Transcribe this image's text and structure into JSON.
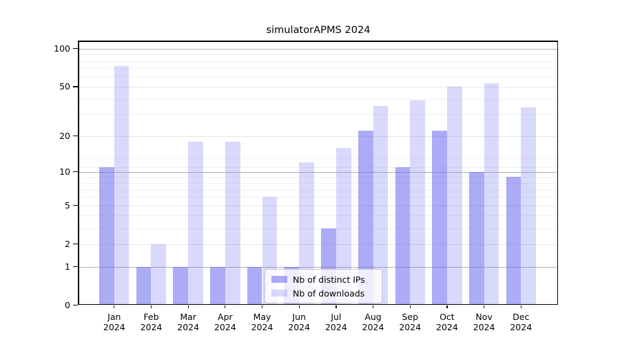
{
  "chart_data": {
    "type": "bar",
    "title": "simulatorAPMS 2024",
    "categories": [
      {
        "month": "Jan",
        "year": "2024"
      },
      {
        "month": "Feb",
        "year": "2024"
      },
      {
        "month": "Mar",
        "year": "2024"
      },
      {
        "month": "Apr",
        "year": "2024"
      },
      {
        "month": "May",
        "year": "2024"
      },
      {
        "month": "Jun",
        "year": "2024"
      },
      {
        "month": "Jul",
        "year": "2024"
      },
      {
        "month": "Aug",
        "year": "2024"
      },
      {
        "month": "Sep",
        "year": "2024"
      },
      {
        "month": "Oct",
        "year": "2024"
      },
      {
        "month": "Nov",
        "year": "2024"
      },
      {
        "month": "Dec",
        "year": "2024"
      }
    ],
    "series": [
      {
        "name": "Nb of distinct IPs",
        "values": [
          11,
          1,
          1,
          1,
          1,
          1,
          3,
          22,
          11,
          22,
          10,
          9
        ]
      },
      {
        "name": "Nb of downloads",
        "values": [
          73,
          2,
          18,
          18,
          6,
          12,
          16,
          35,
          39,
          50,
          53,
          34
        ]
      }
    ],
    "yscale": "log(1+v)",
    "ylim": [
      0,
      116
    ],
    "yticks": [
      0,
      1,
      2,
      5,
      10,
      20,
      50,
      100
    ],
    "minor_gridlines": [
      3,
      4,
      6,
      7,
      8,
      9,
      11,
      13,
      30,
      40,
      60,
      70,
      80,
      90
    ],
    "grid": true,
    "legend_position": "lower center",
    "colors": {
      "bar_base": "#6666ee",
      "dark_bar_alpha": 0.55,
      "light_bar_alpha": 0.25,
      "dark_bar_flat": "#aaaaf5",
      "light_bar_flat": "#d9d9fa",
      "grid_major": "#b0b0b0",
      "grid_labeled": "#e6e6e6",
      "grid_minor": "#f0f0f0",
      "spine": "#000000",
      "text": "#000000",
      "legend_border": "#c8c8c8"
    }
  }
}
